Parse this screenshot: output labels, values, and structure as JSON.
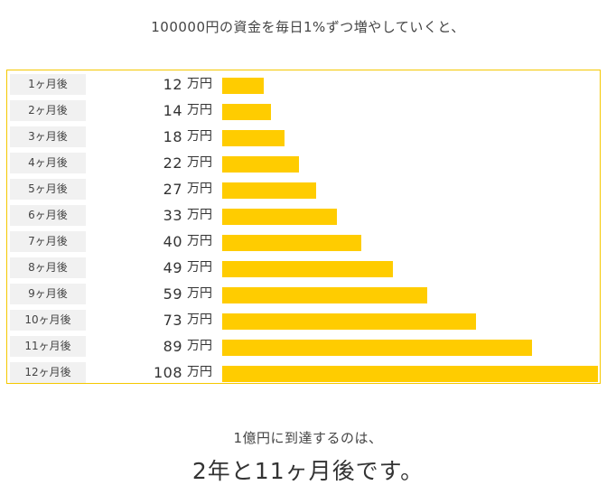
{
  "intro": "100000円の資金を毎日1%ずつ増やしていくと、",
  "chart_data": {
    "type": "bar",
    "orientation": "horizontal",
    "categories": [
      "1ヶ月後",
      "2ヶ月後",
      "3ヶ月後",
      "4ヶ月後",
      "5ヶ月後",
      "6ヶ月後",
      "7ヶ月後",
      "8ヶ月後",
      "9ヶ月後",
      "10ヶ月後",
      "11ヶ月後",
      "12ヶ月後"
    ],
    "values": [
      12,
      14,
      18,
      22,
      27,
      33,
      40,
      49,
      59,
      73,
      89,
      108
    ],
    "unit": "万円",
    "xlim": [
      0,
      108
    ],
    "bar_color": "#ffcc00",
    "border_color": "#f5c800",
    "grid": false,
    "legend": "none"
  },
  "summary": {
    "line": "1億円に到達するのは、",
    "result": "2年と11ヶ月後です。"
  }
}
